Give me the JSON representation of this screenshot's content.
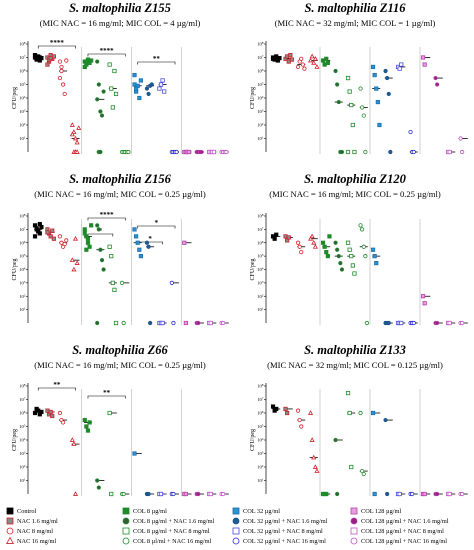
{
  "groups": [
    {
      "label": "Control",
      "color": "#000000",
      "fill": "#000000",
      "shape": "square"
    },
    {
      "label": "NAC 1.6 mg/ml",
      "color": "#d0202a",
      "fill": "#8a8a8a",
      "shape": "square"
    },
    {
      "label": "NAC 8 mg/ml",
      "color": "#d0202a",
      "fill": "none",
      "shape": "circle"
    },
    {
      "label": "NAC 16 mg/ml",
      "color": "#d0202a",
      "fill": "none",
      "shape": "triangle"
    },
    {
      "label": "COL 8 µg/ml",
      "color": "#1f8a2a",
      "fill": "#1f8a2a",
      "shape": "square"
    },
    {
      "label": "COL 8 µg/ml + NAC 1.6 mg/ml",
      "color": "#1f8a2a",
      "fill": "#355e3e",
      "shape": "circle"
    },
    {
      "label": "COL 8 µg/ml + NAC 8 mg/ml",
      "color": "#1f8a2a",
      "fill": "none",
      "shape": "square"
    },
    {
      "label": "COL 8 µl/ml + NAC 16 mg/ml",
      "color": "#1f8a2a",
      "fill": "none",
      "shape": "circle"
    },
    {
      "label": "COL 32 µg/ml",
      "color": "#1a6fb0",
      "fill": "#2e93d0",
      "shape": "square"
    },
    {
      "label": "COL 32 µg/ml + NAC 1.6 mg/ml",
      "color": "#1a4f8a",
      "fill": "#1f5f8f",
      "shape": "circle"
    },
    {
      "label": "COL 32 µg/ml + NAC 8 mg/ml",
      "color": "#4b4bd8",
      "fill": "none",
      "shape": "square"
    },
    {
      "label": "COL 32 µg/ml + NAC 16 mg/ml",
      "color": "#2a2ad0",
      "fill": "none",
      "shape": "circle"
    },
    {
      "label": "COL 128 µg/ml",
      "color": "#b33fa8",
      "fill": "#e89ee0",
      "shape": "square"
    },
    {
      "label": "COL 128 µg/ml + NAC 1.6 mg/ml",
      "color": "#b33fa8",
      "fill": "#9a1f7e",
      "shape": "circle"
    },
    {
      "label": "COL 128 µg/ml + NAC 8 mg/ml",
      "color": "#c050c8",
      "fill": "none",
      "shape": "square"
    },
    {
      "label": "COL 128 µg/ml + NAC 16 mg/ml",
      "color": "#c050c8",
      "fill": "none",
      "shape": "circle"
    }
  ],
  "chart_data": [
    {
      "type": "scatter",
      "title": "S. maltophilia Z155",
      "subtitle": "(MIC NAC = 16 mg/ml; MIC COL = 4 µg/ml)",
      "ylabel": "CFU/peg",
      "yscale": "log10",
      "ylim": [
        1,
        100000000
      ],
      "ytick_exponents": [
        1,
        2,
        3,
        4,
        5,
        6,
        7,
        8
      ],
      "brackets": [
        {
          "from": 0,
          "to": 3,
          "label": "****"
        },
        {
          "from": 4,
          "to": 7,
          "label": "****"
        },
        {
          "from": 8,
          "to": 11,
          "label": "**"
        }
      ],
      "groups": [
        [
          10000000,
          8000000,
          12000000,
          6000000,
          9000000,
          15000000,
          7000000,
          11000000,
          10000000
        ],
        [
          10000000,
          5000000,
          15000000,
          8000000,
          12000000,
          3000000,
          7000000,
          9000000
        ],
        [
          5000000,
          1000000,
          100000,
          20000,
          6000000,
          300000,
          2000000
        ],
        [
          100,
          30,
          10,
          5,
          60,
          20,
          1,
          1,
          1
        ],
        [
          5000000,
          3000000,
          7000000,
          4000000,
          6000000,
          2000000,
          5000000
        ],
        [
          5000000,
          100000,
          1000,
          500,
          30000,
          8000,
          1,
          1
        ],
        [
          3000000,
          50000,
          2000,
          1000000,
          20000
        ],
        [
          1,
          1,
          1,
          1,
          1
        ],
        [
          100000,
          30000,
          80000,
          10000,
          200000,
          500000,
          50000
        ],
        [
          50000,
          20000,
          80000,
          100000
        ],
        [
          50000,
          100000,
          200000,
          30000
        ],
        [
          1,
          1,
          1,
          1
        ],
        [
          1,
          1,
          1,
          1
        ],
        [
          1,
          1,
          1,
          1
        ],
        [
          1,
          1,
          1,
          1
        ],
        [
          1,
          1,
          1,
          1
        ]
      ]
    },
    {
      "type": "scatter",
      "title": "S. maltophilia Z116",
      "subtitle": "(MIC NAC = 32 mg/ml; MIC COL = 1 µg/ml)",
      "ylabel": "CFU/peg",
      "yscale": "log10",
      "ylim": [
        1,
        100000000
      ],
      "ytick_exponents": [
        1,
        2,
        3,
        4,
        5,
        6,
        7,
        8
      ],
      "brackets": [],
      "groups": [
        [
          10000000,
          7000000,
          12000000,
          6000000,
          9000000,
          8000000
        ],
        [
          8000000,
          12000000,
          5000000,
          15000000,
          7000000
        ],
        [
          2000000,
          5000000,
          8000000,
          3000000,
          1500000
        ],
        [
          6000000,
          12000000,
          4000000,
          8000000,
          2000000
        ],
        [
          6000000,
          3000000,
          8000000,
          4000000
        ],
        [
          1000000,
          100000,
          5000,
          1,
          1
        ],
        [
          300000,
          30000,
          3000,
          100,
          1,
          1
        ],
        [
          50000,
          2000,
          500,
          1
        ],
        [
          2000000,
          500000,
          50000,
          5000,
          100
        ],
        [
          1000000,
          300000,
          20000,
          1
        ],
        [
          2000000,
          1500000,
          3000000
        ],
        [
          30,
          1,
          1
        ],
        [
          10000000,
          3000000
        ],
        [
          300000,
          100000
        ],
        [
          1,
          1
        ],
        [
          10,
          1
        ]
      ]
    },
    {
      "type": "scatter",
      "title": "S. maltophilia Z156",
      "subtitle": "(MIC NAC = 16 mg/ml; MIC COL = 0.25 µg/ml)",
      "ylabel": "CFU/peg",
      "yscale": "log10",
      "ylim": [
        1,
        100000000
      ],
      "ytick_exponents": [
        1,
        2,
        3,
        4,
        5,
        6,
        7,
        8
      ],
      "brackets": [
        {
          "from": 4,
          "to": 7,
          "label": "****"
        },
        {
          "from": 4,
          "to": 6,
          "label": "*"
        },
        {
          "from": 8,
          "to": 11,
          "label": "*"
        },
        {
          "from": 8,
          "to": 10,
          "label": "*"
        }
      ],
      "groups": [
        [
          20000000,
          10000000,
          8000000,
          5000000,
          15000000,
          3000000,
          12000000,
          7000000,
          25000000
        ],
        [
          10000000,
          5000000,
          3000000,
          8000000,
          2000000,
          6000000
        ],
        [
          3000000,
          1000000,
          500000,
          800000,
          1500000
        ],
        [
          50000,
          10000,
          2000000,
          30000
        ],
        [
          10000000,
          3000000,
          1000000,
          500000,
          20000000,
          5000000,
          300000,
          2000000
        ],
        [
          20000000,
          10000000,
          300000,
          50000,
          10000,
          1
        ],
        [
          500000,
          100000,
          1000,
          300,
          1
        ],
        [
          1000,
          1
        ],
        [
          10000000,
          3000000,
          1000000,
          300000,
          100000
        ],
        [
          1000000,
          500000,
          1
        ],
        [
          1,
          1,
          1
        ],
        [
          1000,
          1
        ],
        [
          1000000,
          1
        ],
        [
          1,
          1
        ],
        [
          1,
          1
        ],
        [
          1,
          1
        ]
      ]
    },
    {
      "type": "scatter",
      "title": "S. maltophilia Z120",
      "subtitle": "(MIC NAC = 16 mg/ml; MIC COL = 0.25 µg/ml)",
      "ylabel": "CFU/peg",
      "yscale": "log10",
      "ylim": [
        1,
        100000000
      ],
      "ytick_exponents": [
        1,
        2,
        3,
        4,
        5,
        6,
        7,
        8
      ],
      "brackets": [],
      "groups": [
        [
          3000000,
          2000000,
          4000000
        ],
        [
          3000000,
          1500000,
          2500000
        ],
        [
          1000000,
          500000,
          200000
        ],
        [
          2000000,
          3000000,
          1000000,
          500000
        ],
        [
          1000000,
          500000,
          200000,
          100000,
          3000000
        ],
        [
          1000000,
          300000,
          100000,
          30000,
          10000
        ],
        [
          1000000,
          300000,
          100000,
          20000,
          5000
        ],
        [
          20000000,
          10000000,
          500000,
          100000,
          1
        ],
        [
          300000,
          100000,
          30000
        ],
        [
          1,
          1,
          1
        ],
        [
          1,
          1,
          1
        ],
        [
          1,
          1,
          1
        ],
        [
          100,
          30
        ],
        [
          1,
          1
        ],
        [
          1,
          1
        ],
        [
          1,
          1
        ]
      ]
    },
    {
      "type": "scatter",
      "title": "S. maltophilia Z66",
      "subtitle": "(MIC NAC = 16 mg/ml; MIC COL = 0.25 µg/ml)",
      "ylabel": "CFU/peg",
      "yscale": "log10",
      "ylim": [
        1,
        100000000
      ],
      "ytick_exponents": [
        1,
        2,
        3,
        4,
        5,
        6,
        7,
        8
      ],
      "brackets": [
        {
          "from": 0,
          "to": 3,
          "label": "**"
        },
        {
          "from": 4,
          "to": 7,
          "label": "**"
        }
      ],
      "groups": [
        [
          1000000,
          2000000,
          1500000,
          800000,
          1200000
        ],
        [
          1500000,
          800000,
          1200000,
          600000
        ],
        [
          1000000,
          300000,
          200000
        ],
        [
          10000,
          5000,
          1
        ],
        [
          300000,
          100000,
          50000,
          200000
        ],
        [
          10,
          3
        ],
        [
          1000000,
          1
        ],
        [
          1,
          1
        ],
        [
          1000
        ],
        [
          1,
          1
        ],
        [
          1,
          1
        ],
        [
          1,
          1
        ],
        [
          1,
          1
        ],
        [
          1,
          1
        ],
        [
          1,
          1
        ],
        [
          1,
          1
        ]
      ]
    },
    {
      "type": "scatter",
      "title": "S. maltophilia Z133",
      "subtitle": "(MIC NAC = 32 mg/ml; MIC COL = 0.125 µg/ml)",
      "ylabel": "CFU/peg",
      "yscale": "log10",
      "ylim": [
        1,
        100000000
      ],
      "ytick_exponents": [
        1,
        2,
        3,
        4,
        5,
        6,
        7,
        8
      ],
      "brackets": [],
      "groups": [
        [
          3000000,
          1500000,
          2000000
        ],
        [
          2000000,
          1000000
        ],
        [
          1500000,
          300000,
          100000
        ],
        [
          1000000,
          10000,
          500,
          100,
          50
        ],
        [
          1,
          1,
          1
        ],
        [
          10000,
          1
        ],
        [
          30000000,
          1000000,
          100
        ],
        [
          1000000,
          50,
          30
        ],
        [
          1000000,
          1
        ],
        [
          300000,
          1
        ],
        [
          1,
          1
        ],
        [
          1,
          1
        ],
        [
          1,
          1
        ],
        [
          1,
          1
        ],
        [
          1,
          1
        ],
        [
          1,
          1
        ]
      ]
    }
  ]
}
